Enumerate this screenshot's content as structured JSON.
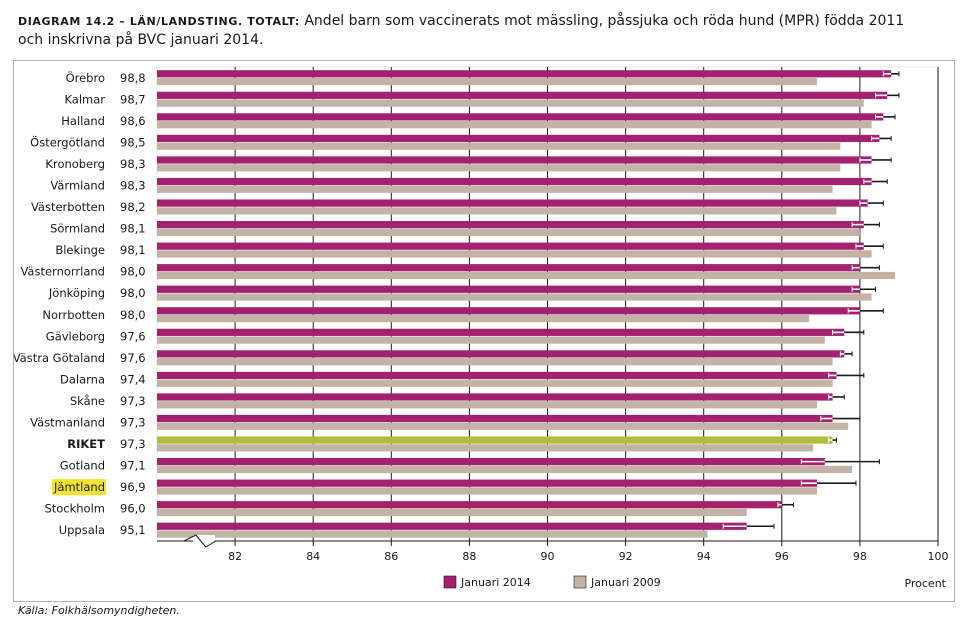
{
  "title": {
    "caption": "DIAGRAM 14.2 – LÄN/LANDSTING. TOTALT:",
    "text": " Andel barn som vaccinerats mot mässling, påssjuka och röda hund (MPR) födda 2011 och inskrivna på BVC januari 2014."
  },
  "source": "Källa: Folkhälsomyndigheten.",
  "chart_data": {
    "type": "bar",
    "orientation": "horizontal",
    "categories": [
      "Örebro",
      "Kalmar",
      "Halland",
      "Östergötland",
      "Kronoberg",
      "Värmland",
      "Västerbotten",
      "Sörmland",
      "Blekinge",
      "Västernorrland",
      "Jönköping",
      "Norrbotten",
      "Gävleborg",
      "Västra Götaland",
      "Dalarna",
      "Skåne",
      "Västmanland",
      "RIKET",
      "Gotland",
      "Jämtland",
      "Stockholm",
      "Uppsala"
    ],
    "value_labels": [
      "98,8",
      "98,7",
      "98,6",
      "98,5",
      "98,3",
      "98,3",
      "98,2",
      "98,1",
      "98,1",
      "98,0",
      "98,0",
      "98,0",
      "97,6",
      "97,6",
      "97,4",
      "97,3",
      "97,3",
      "97,3",
      "97,1",
      "96,9",
      "96,0",
      "95,1"
    ],
    "series": [
      {
        "name": "Januari 2014",
        "color": "#a3216e",
        "values": [
          98.8,
          98.7,
          98.6,
          98.5,
          98.3,
          98.3,
          98.2,
          98.1,
          98.1,
          98.0,
          98.0,
          98.0,
          97.6,
          97.6,
          97.4,
          97.3,
          97.3,
          97.3,
          97.1,
          96.9,
          96.0,
          95.1
        ],
        "ci_low": [
          98.6,
          98.4,
          98.4,
          98.3,
          98.0,
          98.1,
          98.0,
          97.8,
          97.9,
          97.8,
          97.8,
          97.7,
          97.3,
          97.5,
          97.2,
          97.2,
          97.0,
          97.2,
          96.5,
          96.5,
          95.9,
          94.5
        ],
        "ci_high": [
          99.0,
          99.0,
          98.9,
          98.8,
          98.8,
          98.7,
          98.6,
          98.5,
          98.6,
          98.5,
          98.4,
          98.6,
          98.1,
          97.8,
          98.1,
          97.6,
          98.0,
          97.4,
          98.5,
          97.9,
          96.3,
          95.8
        ]
      },
      {
        "name": "Januari 2009",
        "color": "#c3b2a6",
        "values": [
          96.9,
          98.1,
          98.3,
          97.5,
          97.5,
          97.3,
          97.4,
          98.0,
          98.3,
          98.9,
          98.3,
          96.7,
          97.1,
          97.3,
          97.3,
          96.9,
          97.7,
          96.8,
          97.8,
          96.9,
          95.1,
          94.1
        ]
      }
    ],
    "highlight_category": "RIKET",
    "highlight_color": "#b1bc38",
    "highlighted_label": "Jämtland",
    "highlighted_label_color": "#f2e52a",
    "xlim": [
      80,
      100
    ],
    "x_ticks": [
      82,
      84,
      86,
      88,
      90,
      92,
      94,
      96,
      98,
      100
    ],
    "xlabel": "Procent",
    "axis_break": true,
    "grid": true,
    "legend_position": "bottom-center"
  }
}
